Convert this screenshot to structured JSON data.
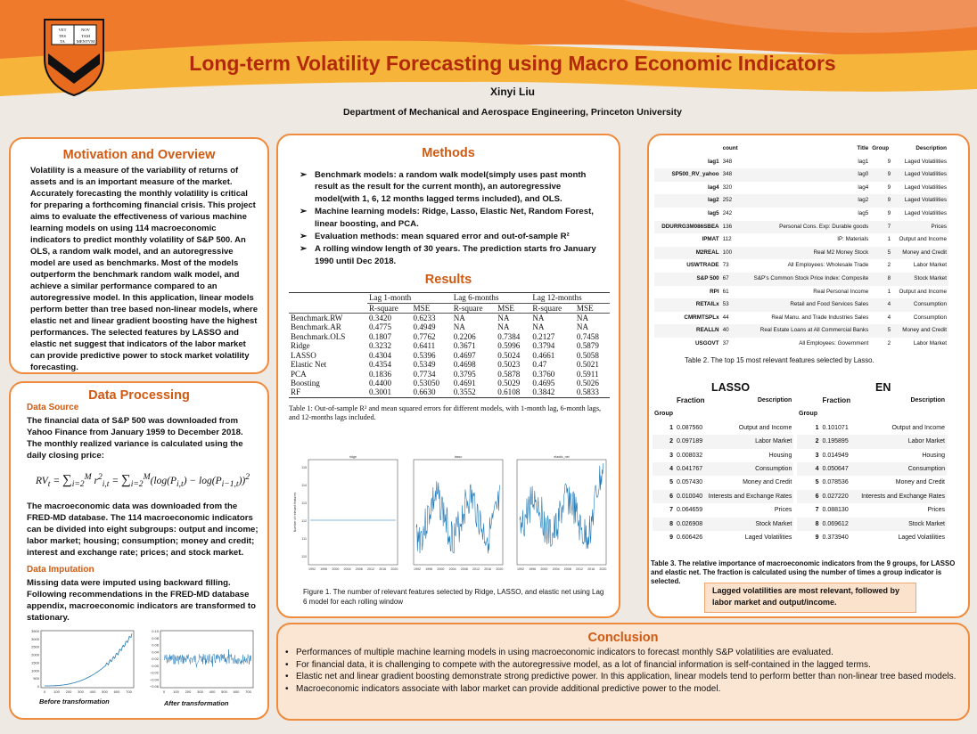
{
  "header": {
    "title": "Long-term Volatility Forecasting using Macro Economic Indicators",
    "author": "Xinyi Liu",
    "affiliation": "Department of Mechanical and Aerospace Engineering, Princeton University",
    "shield_text": [
      "VET",
      "NOV",
      "TES",
      "TAM",
      "TA",
      "MENTVM"
    ],
    "colors": {
      "title": "#b2290a",
      "accent": "#f08a3c",
      "panel_title": "#d05a12",
      "banner_orange": "#ef7a2c",
      "banner_yellow": "#f7bf38"
    }
  },
  "motivation": {
    "title": "Motivation and Overview",
    "text": "Volatility is a measure of the variability of returns of assets and is an important measure of the market. Accurately forecasting the monthly volatility is critical for preparing a forthcoming financial crisis. This project aims to evaluate the effectiveness of various machine learning models on using 114 macroeconomic indicators to predict monthly volatility of S&P 500. An OLS, a random walk model, and an autoregressive model are used as benchmarks. Most of the models outperform the benchmark random walk model, and achieve a similar performance compared to an autoregressive model. In this application, linear models perform better than tree based non-linear models, where elastic net and linear gradient boosting have the highest performances. The selected features by LASSO and elastic net suggest that indicators of the labor market can provide predictive power to stock market volatility forecasting."
  },
  "data_processing": {
    "title": "Data Processing",
    "source_heading": "Data Source",
    "source_text": "The financial data of S&P 500 was downloaded from Yahoo Finance from January 1959 to December 2018. The monthly realized variance is calculated using the daily closing price:",
    "formula": "RV_t = Σ_{i=2}^{M} r²_{i,t} = Σ_{i=2}^{M} (log(P_{i,t}) − log(P_{i−1,t}))²",
    "macro_text": "The macroeconomic data was downloaded from the FRED-MD database. The 114 macroeconomic indicators can be divided into eight subgroups: output and income; labor market; housing; consumption; money and credit; interest and exchange rate; prices; and stock market.",
    "imputation_heading": "Data Imputation",
    "imputation_text": "Missing data were imputed using backward filling. Following recommendations in the FRED-MD database appendix, macroeconomic indicators are transformed to stationary.",
    "before_label": "Before transformation",
    "after_label": "After transformation",
    "before_yticks": [
      "3500",
      "3000",
      "2500",
      "2000",
      "1500",
      "1000",
      "500",
      "0"
    ],
    "before_xticks": [
      "0",
      "100",
      "200",
      "300",
      "400",
      "500",
      "600",
      "700"
    ],
    "after_yticks": [
      "0.10",
      "0.08",
      "0.06",
      "0.04",
      "0.02",
      "0.00",
      "−0.02",
      "−0.04",
      "−0.06"
    ],
    "after_xticks": [
      "0",
      "100",
      "200",
      "300",
      "400",
      "500",
      "600",
      "700"
    ]
  },
  "methods": {
    "title": "Methods",
    "bullets": [
      "Benchmark models: a random walk model(simply uses past month result as the result for the current month), an autoregressive model(with 1, 6, 12 months lagged terms included), and OLS.",
      "Machine learning models: Ridge, Lasso, Elastic Net, Random Forest, linear boosting, and PCA.",
      "Evaluation methods: mean squared error and out-of-sample R²",
      "A rolling window length of 30 years. The prediction starts fro January 1990 until Dec 2018."
    ]
  },
  "results": {
    "title": "Results",
    "group_headers": [
      "Lag 1-month",
      "Lag 6-months",
      "Lag 12-months"
    ],
    "sub_headers": [
      "R-square",
      "MSE",
      "R-square",
      "MSE",
      "R-square",
      "MSE"
    ],
    "rows": [
      [
        "Benchmark.RW",
        "0.3420",
        "0.6233",
        "NA",
        "NA",
        "NA",
        "NA"
      ],
      [
        "Benchmark.AR",
        "0.4775",
        "0.4949",
        "NA",
        "NA",
        "NA",
        "NA"
      ],
      [
        "Benchmark.OLS",
        "0.1807",
        "0.7762",
        "0.2206",
        "0.7384",
        "0.2127",
        "0.7458"
      ],
      [
        "Ridge",
        "0.3232",
        "0.6411",
        "0.3671",
        "0.5996",
        "0.3794",
        "0.5879"
      ],
      [
        "LASSO",
        "0.4304",
        "0.5396",
        "0.4697",
        "0.5024",
        "0.4661",
        "0.5058"
      ],
      [
        "Elastic Net",
        "0.4354",
        "0.5349",
        "0.4698",
        "0.5023",
        "0.47",
        "0.5021"
      ],
      [
        "PCA",
        "0.1836",
        "0.7734",
        "0.3795",
        "0.5878",
        "0.3760",
        "0.5911"
      ],
      [
        "Boosting",
        "0.4400",
        "0.53050",
        "0.4691",
        "0.5029",
        "0.4695",
        "0.5026"
      ],
      [
        "RF",
        "0.3001",
        "0.6630",
        "0.3552",
        "0.6108",
        "0.3842",
        "0.5833"
      ]
    ],
    "table_caption": "Table 1: Out-of-sample R² and mean squared errors for different models, with 1-month lag, 6-month lags, and 12-months lags included.",
    "plot_titles": [
      "ridge",
      "lasso",
      "elastic_net"
    ],
    "plot_ylabel": "Number of relevant features",
    "plot_xticks": [
      "1992",
      "1996",
      "2000",
      "2004",
      "2008",
      "2012",
      "2016",
      "2020"
    ],
    "plot_yticks": [
      "115",
      "114",
      "113",
      "112",
      "111",
      "110"
    ],
    "figure_caption": "Figure 1. The number of relevant features selected by Ridge, LASSO, and elastic net using Lag 6 model for each rolling window"
  },
  "features": {
    "headers": [
      "count",
      "Title",
      "Group",
      "Description"
    ],
    "rows": [
      [
        "lag1",
        "348",
        "lag1",
        "9",
        "Laged Volatilities"
      ],
      [
        "SP500_RV_yahoo",
        "348",
        "lag0",
        "9",
        "Laged Volatilities"
      ],
      [
        "lag4",
        "320",
        "lag4",
        "9",
        "Laged Volatilities"
      ],
      [
        "lag2",
        "252",
        "lag2",
        "9",
        "Laged Volatilities"
      ],
      [
        "lag5",
        "242",
        "lag5",
        "9",
        "Laged Volatilities"
      ],
      [
        "DDURRG3M086SBEA",
        "136",
        "Personal Cons. Exp: Durable goods",
        "7",
        "Prices"
      ],
      [
        "IPMAT",
        "112",
        "IP: Materials",
        "1",
        "Output and Income"
      ],
      [
        "M2REAL",
        "100",
        "Real M2 Money Stock",
        "5",
        "Money and Credit"
      ],
      [
        "USWTRADE",
        "73",
        "All Employees: Wholesale Trade",
        "2",
        "Labor Market"
      ],
      [
        "S&P 500",
        "67",
        "S&P's Common Stock Price Index: Composite",
        "8",
        "Stock Market"
      ],
      [
        "RPI",
        "61",
        "Real Personal Income",
        "1",
        "Output and Income"
      ],
      [
        "RETAILx",
        "53",
        "Retail and Food Services Sales",
        "4",
        "Consumption"
      ],
      [
        "CMRMTSPLx",
        "44",
        "Real Manu. and Trade Industries Sales",
        "4",
        "Consumption"
      ],
      [
        "REALLN",
        "40",
        "Real Estate Loans at All Commercial Banks",
        "5",
        "Money and Credit"
      ],
      [
        "USGOVT",
        "37",
        "All Employees: Government",
        "2",
        "Labor Market"
      ]
    ],
    "caption": "Table 2. The top 15 most  relevant features selected by Lasso."
  },
  "importance": {
    "lasso_title": "LASSO",
    "en_title": "EN",
    "headers": [
      "Fraction",
      "Description"
    ],
    "group_label": "Group",
    "lasso_rows": [
      [
        "1",
        "0.087560",
        "Output and Income"
      ],
      [
        "2",
        "0.097189",
        "Labor Market"
      ],
      [
        "3",
        "0.008032",
        "Housing"
      ],
      [
        "4",
        "0.041767",
        "Consumption"
      ],
      [
        "5",
        "0.057430",
        "Money and Credit"
      ],
      [
        "6",
        "0.010040",
        "Interests and Exchange Rates"
      ],
      [
        "7",
        "0.064659",
        "Prices"
      ],
      [
        "8",
        "0.026908",
        "Stock Market"
      ],
      [
        "9",
        "0.606426",
        "Laged Volatilities"
      ]
    ],
    "en_rows": [
      [
        "1",
        "0.101071",
        "Output and Income"
      ],
      [
        "2",
        "0.195895",
        "Labor Market"
      ],
      [
        "3",
        "0.014949",
        "Housing"
      ],
      [
        "4",
        "0.050647",
        "Consumption"
      ],
      [
        "5",
        "0.078536",
        "Money and Credit"
      ],
      [
        "6",
        "0.027220",
        "Interests and Exchange Rates"
      ],
      [
        "7",
        "0.088130",
        "Prices"
      ],
      [
        "8",
        "0.069612",
        "Stock Market"
      ],
      [
        "9",
        "0.373940",
        "Laged Volatilities"
      ]
    ],
    "caption": "Table 3. The relative importance of macroeconomic indicators from the 9 groups, for LASSO and elastic net. The fraction is calculated using the number of times a group indicator is selected.",
    "callout": "Lagged volatilities are most relevant, followed by labor market and output/income."
  },
  "conclusion": {
    "title": "Conclusion",
    "bullets": [
      "Performances of multiple machine learning models in using macroeconomic indicators to forecast monthly S&P volatilities are evaluated.",
      "For financial data, it is challenging to compete with the autoregressive model, as a lot of financial information is self-contained in the lagged terms.",
      "Elastic net and linear gradient boosting demonstrate strong predictive power. In this application, linear models tend to perform better than non-linear tree based models.",
      "Macroeconomic indicators associate with labor market can provide additional predictive power to the model."
    ]
  }
}
